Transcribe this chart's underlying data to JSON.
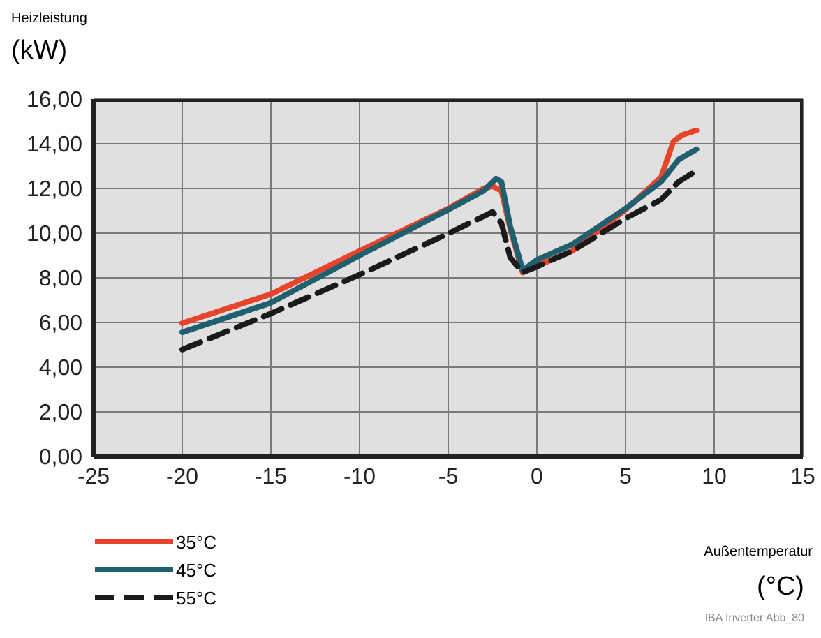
{
  "chart_data": {
    "type": "line",
    "ylabel": "Heizleistung (kW)",
    "xlabel": "Außentemperatur (°C)",
    "annotations": [
      "IBA Inverter Abb_80"
    ],
    "xlim": [
      -25,
      15
    ],
    "xticks": [
      -25,
      -20,
      -15,
      -10,
      -5,
      0,
      5,
      10,
      15
    ],
    "ylim": [
      0,
      16
    ],
    "yticks": [
      {
        "value": 0,
        "label": "0,00"
      },
      {
        "value": 2,
        "label": "2,00"
      },
      {
        "value": 4,
        "label": "4,00"
      },
      {
        "value": 6,
        "label": "6,00"
      },
      {
        "value": 8,
        "label": "8,00"
      },
      {
        "value": 10,
        "label": "10,00"
      },
      {
        "value": 12,
        "label": "12,00"
      },
      {
        "value": 14,
        "label": "14,00"
      },
      {
        "value": 16,
        "label": "16,00"
      }
    ],
    "grid": true,
    "legend": "bottom left",
    "marker": "none",
    "series": [
      {
        "name": "35°C",
        "color": "#e8442c",
        "line_style": "solid",
        "x": [
          -20,
          -15,
          -10,
          -5,
          -3,
          -2.5,
          -2,
          -1.5,
          -0.8,
          0,
          2,
          5,
          7,
          7.7,
          8.2,
          9
        ],
        "values": [
          5.97,
          7.27,
          9.2,
          11.1,
          12.0,
          12.1,
          11.9,
          10.2,
          8.24,
          8.53,
          9.2,
          11.05,
          12.5,
          14.1,
          14.4,
          14.6
        ]
      },
      {
        "name": "45°C",
        "color": "#1f5f6e",
        "line_style": "solid",
        "x": [
          -20,
          -15,
          -10,
          -5,
          -3,
          -2.3,
          -2,
          -1.5,
          -0.8,
          0,
          2,
          5,
          7,
          8,
          9
        ],
        "values": [
          5.56,
          6.88,
          9.0,
          11.05,
          11.9,
          12.44,
          12.3,
          10.3,
          8.33,
          8.8,
          9.5,
          11.1,
          12.3,
          13.3,
          13.75
        ]
      },
      {
        "name": "55°C",
        "color": "#1a1a1a",
        "line_style": "dashed",
        "x": [
          -20,
          -15,
          -10,
          -5,
          -2.5,
          -2,
          -1.5,
          -0.8,
          0,
          2,
          5,
          7,
          8,
          9
        ],
        "values": [
          4.79,
          6.4,
          8.14,
          9.98,
          10.95,
          10.45,
          8.9,
          8.24,
          8.5,
          9.2,
          10.66,
          11.5,
          12.3,
          12.8
        ]
      }
    ]
  }
}
